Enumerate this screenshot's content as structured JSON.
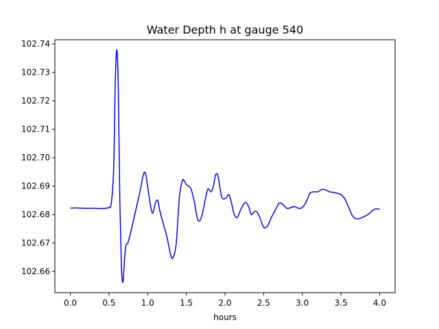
{
  "chart_data": {
    "type": "line",
    "title": "Water Depth h at gauge 540",
    "xlabel": "hours",
    "ylabel": "",
    "xlim": [
      -0.2,
      4.2
    ],
    "ylim": [
      102.6525,
      102.7415
    ],
    "xticks": [
      0.0,
      0.5,
      1.0,
      1.5,
      2.0,
      2.5,
      3.0,
      3.5,
      4.0
    ],
    "xtick_labels": [
      "0.0",
      "0.5",
      "1.0",
      "1.5",
      "2.0",
      "2.5",
      "3.0",
      "3.5",
      "4.0"
    ],
    "yticks": [
      102.66,
      102.67,
      102.68,
      102.69,
      102.7,
      102.71,
      102.72,
      102.73,
      102.74
    ],
    "ytick_labels": [
      "102.66",
      "102.67",
      "102.68",
      "102.69",
      "102.70",
      "102.71",
      "102.72",
      "102.73",
      "102.74"
    ],
    "grid": false,
    "legend": "none",
    "series": [
      {
        "color": "#0000ff",
        "x": [
          0.0,
          0.1,
          0.2,
          0.3,
          0.4,
          0.45,
          0.5,
          0.53,
          0.56,
          0.58,
          0.6,
          0.62,
          0.64,
          0.66,
          0.68,
          0.7,
          0.72,
          0.75,
          0.8,
          0.85,
          0.9,
          0.95,
          0.98,
          1.02,
          1.06,
          1.1,
          1.13,
          1.16,
          1.2,
          1.25,
          1.3,
          1.33,
          1.37,
          1.41,
          1.45,
          1.48,
          1.5,
          1.53,
          1.56,
          1.6,
          1.65,
          1.7,
          1.75,
          1.78,
          1.82,
          1.85,
          1.88,
          1.91,
          1.95,
          1.98,
          2.02,
          2.05,
          2.08,
          2.12,
          2.16,
          2.2,
          2.25,
          2.28,
          2.31,
          2.34,
          2.38,
          2.41,
          2.45,
          2.5,
          2.55,
          2.6,
          2.65,
          2.7,
          2.75,
          2.8,
          2.85,
          2.9,
          2.95,
          3.0,
          3.05,
          3.1,
          3.15,
          3.2,
          3.25,
          3.3,
          3.35,
          3.4,
          3.45,
          3.5,
          3.55,
          3.6,
          3.65,
          3.7,
          3.75,
          3.8,
          3.85,
          3.9,
          3.95,
          4.0
        ],
        "y": [
          102.6823,
          102.6823,
          102.6822,
          102.6822,
          102.6821,
          102.6822,
          102.6825,
          102.684,
          102.696,
          102.725,
          102.738,
          102.725,
          102.685,
          102.662,
          102.6562,
          102.664,
          102.669,
          102.6705,
          102.676,
          102.682,
          102.688,
          102.6945,
          102.6935,
          102.686,
          102.6805,
          102.684,
          102.685,
          102.681,
          102.677,
          102.672,
          102.6655,
          102.665,
          102.67,
          102.686,
          102.692,
          102.6915,
          102.6905,
          102.69,
          102.689,
          102.685,
          102.678,
          102.6795,
          102.686,
          102.689,
          102.688,
          102.69,
          102.694,
          102.6935,
          102.687,
          102.6855,
          102.686,
          102.687,
          102.6845,
          102.68,
          102.679,
          102.6815,
          102.684,
          102.684,
          102.6825,
          102.68,
          102.681,
          102.681,
          102.679,
          102.6755,
          102.676,
          102.679,
          102.6815,
          102.684,
          102.6835,
          102.6822,
          102.6824,
          102.6828,
          102.6822,
          102.6825,
          102.6845,
          102.6875,
          102.688,
          102.688,
          102.6888,
          102.6887,
          102.688,
          102.6878,
          102.6875,
          102.687,
          102.6855,
          102.6825,
          102.6795,
          102.6785,
          102.6787,
          102.6793,
          102.68,
          102.6812,
          102.682,
          102.6818
        ]
      }
    ]
  }
}
